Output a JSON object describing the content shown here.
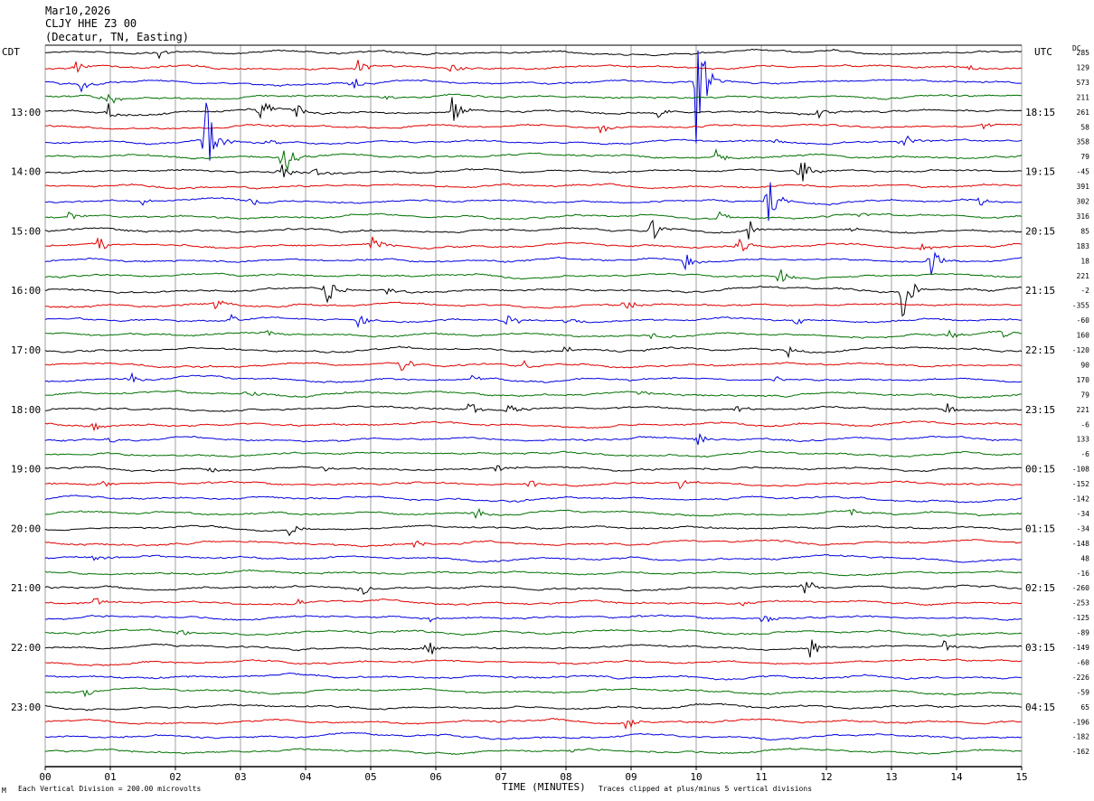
{
  "header": {
    "date": "Mar10,2026",
    "station": "CLJY HHE Z3 00",
    "location": "(Decatur, TN, Easting)"
  },
  "left_tz": "CDT",
  "right_tz": "UTC",
  "dc_header": "DC",
  "footer": {
    "scale_note": "Each Vertical Division =  200.00 microvolts",
    "xlabel": "TIME (MINUTES)",
    "clip_note": "Traces clipped at plus/minus 5 vertical divisions",
    "corner_mark": "M"
  },
  "colors": {
    "cycle": [
      "#000000",
      "#e00000",
      "#0000e0",
      "#007000"
    ],
    "grid": "#888888",
    "axis": "#000000"
  },
  "chart_data": {
    "type": "line",
    "title": "",
    "xlabel": "TIME (MINUTES)",
    "ylabel": "",
    "xlim": [
      0,
      15
    ],
    "x_ticks": [
      "00",
      "01",
      "02",
      "03",
      "04",
      "05",
      "06",
      "07",
      "08",
      "09",
      "10",
      "11",
      "12",
      "13",
      "14",
      "15"
    ],
    "trace_interval_minutes": 15,
    "trace_count": 48,
    "left_time_labels": [
      {
        "trace": 4,
        "label": "13:00"
      },
      {
        "trace": 8,
        "label": "14:00"
      },
      {
        "trace": 12,
        "label": "15:00"
      },
      {
        "trace": 16,
        "label": "16:00"
      },
      {
        "trace": 20,
        "label": "17:00"
      },
      {
        "trace": 24,
        "label": "18:00"
      },
      {
        "trace": 28,
        "label": "19:00"
      },
      {
        "trace": 32,
        "label": "20:00"
      },
      {
        "trace": 36,
        "label": "21:00"
      },
      {
        "trace": 40,
        "label": "22:00"
      },
      {
        "trace": 44,
        "label": "23:00"
      }
    ],
    "right_time_labels": [
      {
        "trace": 4,
        "label": "18:15"
      },
      {
        "trace": 8,
        "label": "19:15"
      },
      {
        "trace": 12,
        "label": "20:15"
      },
      {
        "trace": 16,
        "label": "21:15"
      },
      {
        "trace": 20,
        "label": "22:15"
      },
      {
        "trace": 24,
        "label": "23:15"
      },
      {
        "trace": 28,
        "label": "00:15"
      },
      {
        "trace": 32,
        "label": "01:15"
      },
      {
        "trace": 36,
        "label": "02:15"
      },
      {
        "trace": 40,
        "label": "03:15"
      },
      {
        "trace": 44,
        "label": "04:15"
      }
    ],
    "dc_offsets": [
      285,
      129,
      573,
      211,
      261,
      58,
      358,
      79,
      -45,
      391,
      302,
      316,
      85,
      183,
      18,
      221,
      -2,
      -355,
      -60,
      160,
      -120,
      90,
      170,
      79,
      221,
      -6,
      133,
      -6,
      -108,
      -152,
      -142,
      -34,
      -34,
      -148,
      48,
      -16,
      -260,
      -253,
      -125,
      -89,
      -149,
      -60,
      -226,
      -59,
      65,
      -196,
      -182,
      -162
    ],
    "events": [
      {
        "trace": 0,
        "minute": 1.75,
        "amp": 5
      },
      {
        "trace": 1,
        "minute": 0.45,
        "amp": 6
      },
      {
        "trace": 1,
        "minute": 4.8,
        "amp": 9
      },
      {
        "trace": 1,
        "minute": 6.2,
        "amp": 7
      },
      {
        "trace": 1,
        "minute": 14.2,
        "amp": 5
      },
      {
        "trace": 2,
        "minute": 0.55,
        "amp": 6
      },
      {
        "trace": 2,
        "minute": 4.7,
        "amp": 8
      },
      {
        "trace": 2,
        "minute": 10.0,
        "amp": 60
      },
      {
        "trace": 3,
        "minute": 0.9,
        "amp": 12
      },
      {
        "trace": 3,
        "minute": 5.2,
        "amp": 4
      },
      {
        "trace": 4,
        "minute": 0.95,
        "amp": 10
      },
      {
        "trace": 4,
        "minute": 3.3,
        "amp": 10
      },
      {
        "trace": 4,
        "minute": 3.85,
        "amp": 8
      },
      {
        "trace": 4,
        "minute": 6.25,
        "amp": 12
      },
      {
        "trace": 4,
        "minute": 9.4,
        "amp": 6
      },
      {
        "trace": 4,
        "minute": 11.85,
        "amp": 6
      },
      {
        "trace": 5,
        "minute": 8.5,
        "amp": 8
      },
      {
        "trace": 5,
        "minute": 14.4,
        "amp": 4
      },
      {
        "trace": 6,
        "minute": 2.45,
        "amp": 40
      },
      {
        "trace": 6,
        "minute": 3.4,
        "amp": 5
      },
      {
        "trace": 6,
        "minute": 11.2,
        "amp": 5
      },
      {
        "trace": 6,
        "minute": 13.15,
        "amp": 9
      },
      {
        "trace": 7,
        "minute": 3.65,
        "amp": 20
      },
      {
        "trace": 7,
        "minute": 10.3,
        "amp": 6
      },
      {
        "trace": 8,
        "minute": 3.6,
        "amp": 10
      },
      {
        "trace": 8,
        "minute": 4.1,
        "amp": 5
      },
      {
        "trace": 8,
        "minute": 11.6,
        "amp": 14
      },
      {
        "trace": 10,
        "minute": 1.5,
        "amp": 6
      },
      {
        "trace": 10,
        "minute": 3.15,
        "amp": 5
      },
      {
        "trace": 10,
        "minute": 11.1,
        "amp": 20
      },
      {
        "trace": 10,
        "minute": 14.35,
        "amp": 8
      },
      {
        "trace": 11,
        "minute": 0.35,
        "amp": 4
      },
      {
        "trace": 11,
        "minute": 10.35,
        "amp": 7
      },
      {
        "trace": 11,
        "minute": 12.45,
        "amp": 4
      },
      {
        "trace": 12,
        "minute": 9.3,
        "amp": 12
      },
      {
        "trace": 12,
        "minute": 10.8,
        "amp": 10
      },
      {
        "trace": 12,
        "minute": 12.35,
        "amp": 4
      },
      {
        "trace": 13,
        "minute": 0.8,
        "amp": 8
      },
      {
        "trace": 13,
        "minute": 5.0,
        "amp": 10
      },
      {
        "trace": 13,
        "minute": 10.65,
        "amp": 8
      },
      {
        "trace": 13,
        "minute": 13.45,
        "amp": 5
      },
      {
        "trace": 14,
        "minute": 9.8,
        "amp": 10
      },
      {
        "trace": 14,
        "minute": 13.6,
        "amp": 12
      },
      {
        "trace": 15,
        "minute": 11.25,
        "amp": 14
      },
      {
        "trace": 16,
        "minute": 4.3,
        "amp": 18
      },
      {
        "trace": 16,
        "minute": 5.25,
        "amp": 4
      },
      {
        "trace": 16,
        "minute": 13.15,
        "amp": 30
      },
      {
        "trace": 17,
        "minute": 2.6,
        "amp": 5
      },
      {
        "trace": 17,
        "minute": 8.9,
        "amp": 7
      },
      {
        "trace": 18,
        "minute": 2.85,
        "amp": 5
      },
      {
        "trace": 18,
        "minute": 4.8,
        "amp": 6
      },
      {
        "trace": 18,
        "minute": 7.1,
        "amp": 10
      },
      {
        "trace": 18,
        "minute": 8.0,
        "amp": 6
      },
      {
        "trace": 18,
        "minute": 11.5,
        "amp": 5
      },
      {
        "trace": 19,
        "minute": 3.35,
        "amp": 5
      },
      {
        "trace": 19,
        "minute": 9.3,
        "amp": 5
      },
      {
        "trace": 19,
        "minute": 13.85,
        "amp": 6
      },
      {
        "trace": 19,
        "minute": 14.7,
        "amp": 6
      },
      {
        "trace": 20,
        "minute": 7.95,
        "amp": 5
      },
      {
        "trace": 20,
        "minute": 11.4,
        "amp": 5
      },
      {
        "trace": 21,
        "minute": 5.45,
        "amp": 9
      },
      {
        "trace": 21,
        "minute": 7.35,
        "amp": 4
      },
      {
        "trace": 22,
        "minute": 1.3,
        "amp": 6
      },
      {
        "trace": 22,
        "minute": 6.55,
        "amp": 4
      },
      {
        "trace": 22,
        "minute": 11.2,
        "amp": 4
      },
      {
        "trace": 23,
        "minute": 3.1,
        "amp": 5
      },
      {
        "trace": 23,
        "minute": 9.1,
        "amp": 4
      },
      {
        "trace": 24,
        "minute": 6.5,
        "amp": 8
      },
      {
        "trace": 24,
        "minute": 7.1,
        "amp": 7
      },
      {
        "trace": 24,
        "minute": 10.6,
        "amp": 5
      },
      {
        "trace": 24,
        "minute": 13.85,
        "amp": 9
      },
      {
        "trace": 25,
        "minute": 0.7,
        "amp": 5
      },
      {
        "trace": 26,
        "minute": 0.95,
        "amp": 5
      },
      {
        "trace": 26,
        "minute": 10.0,
        "amp": 7
      },
      {
        "trace": 28,
        "minute": 2.5,
        "amp": 4
      },
      {
        "trace": 28,
        "minute": 4.25,
        "amp": 4
      },
      {
        "trace": 28,
        "minute": 6.9,
        "amp": 5
      },
      {
        "trace": 29,
        "minute": 0.85,
        "amp": 4
      },
      {
        "trace": 29,
        "minute": 7.4,
        "amp": 6
      },
      {
        "trace": 29,
        "minute": 9.75,
        "amp": 5
      },
      {
        "trace": 31,
        "minute": 6.6,
        "amp": 6
      },
      {
        "trace": 31,
        "minute": 12.35,
        "amp": 4
      },
      {
        "trace": 32,
        "minute": 3.75,
        "amp": 7
      },
      {
        "trace": 33,
        "minute": 5.65,
        "amp": 6
      },
      {
        "trace": 34,
        "minute": 0.75,
        "amp": 4
      },
      {
        "trace": 36,
        "minute": 4.85,
        "amp": 6
      },
      {
        "trace": 36,
        "minute": 11.65,
        "amp": 10
      },
      {
        "trace": 37,
        "minute": 0.75,
        "amp": 6
      },
      {
        "trace": 37,
        "minute": 3.85,
        "amp": 4
      },
      {
        "trace": 37,
        "minute": 10.7,
        "amp": 5
      },
      {
        "trace": 38,
        "minute": 5.9,
        "amp": 4
      },
      {
        "trace": 38,
        "minute": 11.0,
        "amp": 4
      },
      {
        "trace": 39,
        "minute": 2.05,
        "amp": 4
      },
      {
        "trace": 40,
        "minute": 5.85,
        "amp": 12
      },
      {
        "trace": 40,
        "minute": 11.75,
        "amp": 10
      },
      {
        "trace": 40,
        "minute": 13.8,
        "amp": 5
      },
      {
        "trace": 43,
        "minute": 0.6,
        "amp": 6
      },
      {
        "trace": 45,
        "minute": 8.9,
        "amp": 9
      },
      {
        "trace": 47,
        "minute": 8.05,
        "amp": 4
      }
    ]
  }
}
